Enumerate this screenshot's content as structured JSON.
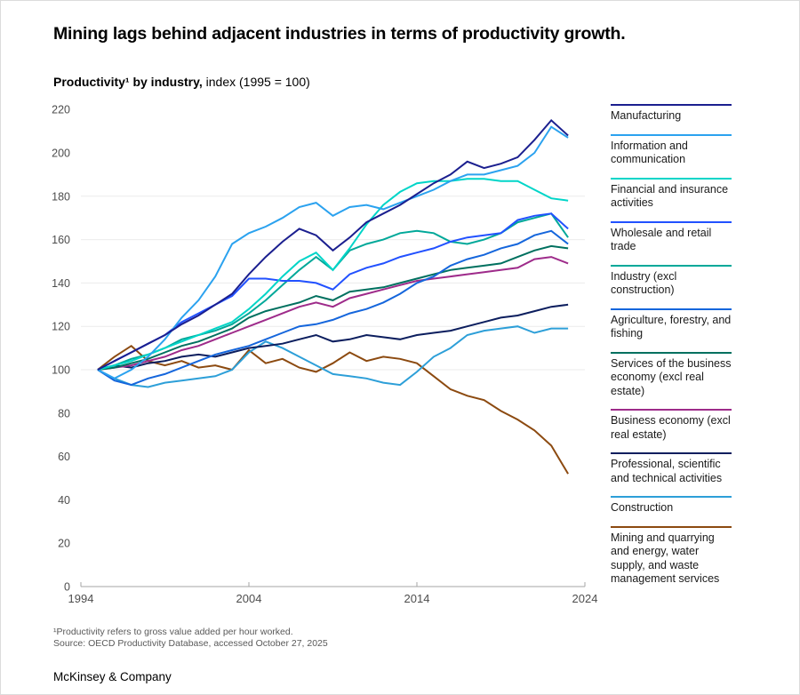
{
  "title": "Mining lags behind adjacent industries in terms of productivity growth.",
  "subtitle": {
    "bold": "Productivity¹ by industry,",
    "regular": " index (1995 = 100)"
  },
  "footnotes": [
    "¹Productivity refers to gross value added per hour worked.",
    "Source: OECD Productivity Database, accessed October 27, 2025"
  ],
  "footer": "McKinsey & Company",
  "chart_data": {
    "type": "line",
    "title": "Productivity by industry, index (1995 = 100)",
    "x": [
      1995,
      1996,
      1997,
      1998,
      1999,
      2000,
      2001,
      2002,
      2003,
      2004,
      2005,
      2006,
      2007,
      2008,
      2009,
      2010,
      2011,
      2012,
      2013,
      2014,
      2015,
      2016,
      2017,
      2018,
      2019,
      2020,
      2021,
      2022,
      2023
    ],
    "x_axis": {
      "range": [
        1994,
        2024
      ],
      "ticks": [
        1994,
        2004,
        2014,
        2024
      ]
    },
    "y_axis": {
      "range": [
        0,
        220
      ],
      "ticks": [
        0,
        20,
        40,
        60,
        80,
        100,
        120,
        140,
        160,
        180,
        200,
        220
      ],
      "gridlines_at": [
        100,
        120,
        140,
        160,
        180
      ]
    },
    "legend_position": "right",
    "series": [
      {
        "name": "Manufacturing",
        "color": "#1b1f8f",
        "values": [
          100,
          104,
          108,
          112,
          116,
          121,
          125,
          130,
          135,
          144,
          152,
          159,
          165,
          162,
          155,
          161,
          168,
          172,
          176,
          181,
          186,
          190,
          196,
          193,
          195,
          198,
          206,
          215,
          208
        ]
      },
      {
        "name": "Information and communication",
        "color": "#2ba2ef",
        "values": [
          100,
          96,
          100,
          106,
          114,
          124,
          132,
          143,
          158,
          163,
          166,
          170,
          175,
          177,
          171,
          175,
          176,
          174,
          177,
          180,
          183,
          187,
          190,
          190,
          192,
          194,
          200,
          212,
          207
        ]
      },
      {
        "name": "Financial and insurance activities",
        "color": "#00d5c8",
        "values": [
          100,
          102,
          104,
          107,
          110,
          113,
          116,
          119,
          122,
          128,
          135,
          143,
          150,
          154,
          146,
          156,
          167,
          176,
          182,
          186,
          187,
          187,
          188,
          188,
          187,
          187,
          183,
          179,
          178
        ]
      },
      {
        "name": "Wholesale and retail trade",
        "color": "#2251ff",
        "values": [
          100,
          104,
          108,
          112,
          116,
          122,
          126,
          130,
          134,
          142,
          142,
          141,
          141,
          140,
          137,
          144,
          147,
          149,
          152,
          154,
          156,
          159,
          161,
          162,
          163,
          169,
          171,
          172,
          165
        ]
      },
      {
        "name": "Industry (excl construction)",
        "color": "#00a899",
        "values": [
          100,
          102,
          105,
          107,
          110,
          114,
          116,
          118,
          121,
          126,
          132,
          139,
          146,
          152,
          146,
          155,
          158,
          160,
          163,
          164,
          163,
          159,
          158,
          160,
          163,
          168,
          170,
          172,
          161
        ]
      },
      {
        "name": "Agriculture, forestry, and fishing",
        "color": "#1566dc",
        "values": [
          100,
          95,
          93,
          96,
          98,
          101,
          104,
          107,
          109,
          111,
          114,
          117,
          120,
          121,
          123,
          126,
          128,
          131,
          135,
          140,
          143,
          148,
          151,
          153,
          156,
          158,
          162,
          164,
          158
        ]
      },
      {
        "name": "Services of the business economy (excl real estate)",
        "color": "#00705f",
        "values": [
          100,
          101,
          103,
          105,
          108,
          111,
          113,
          116,
          119,
          124,
          127,
          129,
          131,
          134,
          132,
          136,
          137,
          138,
          140,
          142,
          144,
          146,
          147,
          148,
          149,
          152,
          155,
          157,
          156
        ]
      },
      {
        "name": "Business economy (excl real estate)",
        "color": "#9e2b8a",
        "values": [
          100,
          101,
          102,
          104,
          106,
          109,
          111,
          114,
          117,
          120,
          123,
          126,
          129,
          131,
          129,
          133,
          135,
          137,
          139,
          141,
          142,
          143,
          144,
          145,
          146,
          147,
          151,
          152,
          149
        ]
      },
      {
        "name": "Professional, scientific and technical activities",
        "color": "#0c1e5e",
        "values": [
          100,
          102,
          101,
          103,
          104,
          106,
          107,
          106,
          108,
          110,
          111,
          112,
          114,
          116,
          113,
          114,
          116,
          115,
          114,
          116,
          117,
          118,
          120,
          122,
          124,
          125,
          127,
          129,
          130
        ]
      },
      {
        "name": "Construction",
        "color": "#2d9fd8",
        "values": [
          100,
          96,
          93,
          92,
          94,
          95,
          96,
          97,
          100,
          108,
          113,
          110,
          106,
          102,
          98,
          97,
          96,
          94,
          93,
          99,
          106,
          110,
          116,
          118,
          119,
          120,
          117,
          119,
          119
        ]
      },
      {
        "name": "Mining and quarrying and energy, water supply, and waste management services",
        "color": "#8c4a10",
        "values": [
          100,
          106,
          111,
          104,
          102,
          104,
          101,
          102,
          100,
          109,
          103,
          105,
          101,
          99,
          103,
          108,
          104,
          106,
          105,
          103,
          97,
          91,
          88,
          86,
          81,
          77,
          72,
          65,
          52
        ]
      }
    ]
  }
}
